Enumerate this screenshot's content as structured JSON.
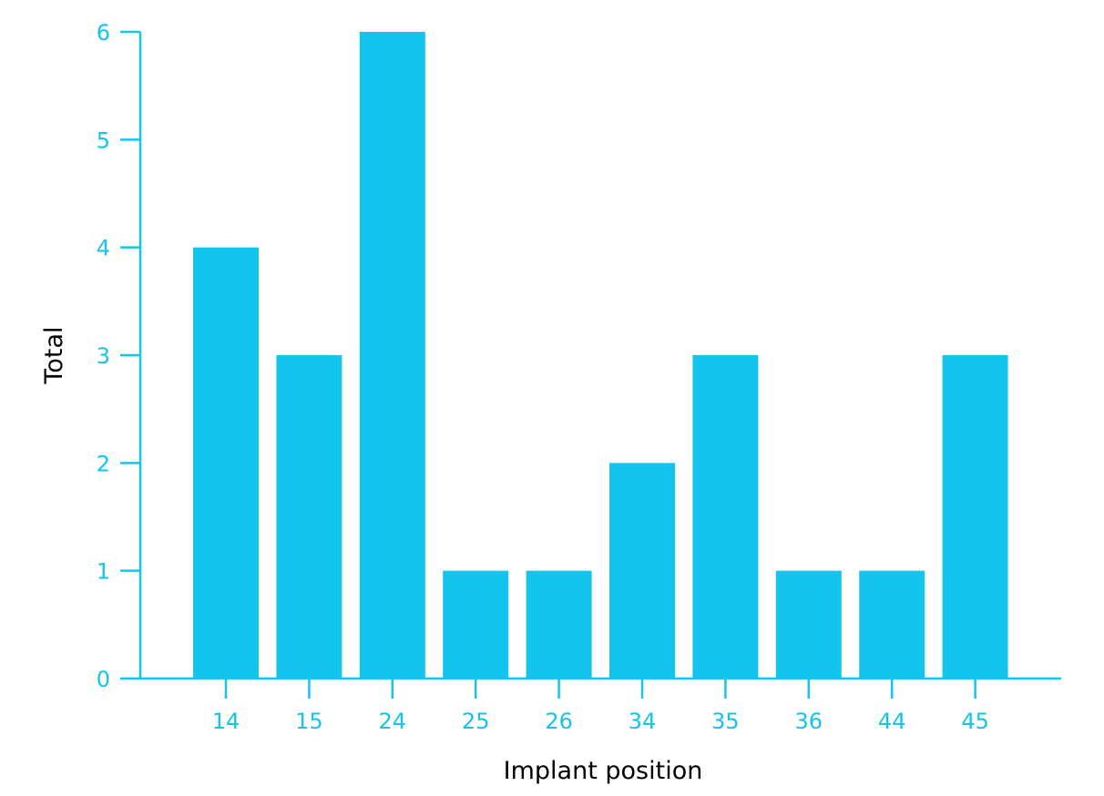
{
  "chart_data": {
    "type": "bar",
    "categories": [
      "14",
      "15",
      "24",
      "25",
      "26",
      "34",
      "35",
      "36",
      "44",
      "45"
    ],
    "values": [
      4,
      3,
      6,
      1,
      1,
      2,
      3,
      1,
      1,
      3
    ],
    "xlabel": "Implant position",
    "ylabel": "Total",
    "ylim": [
      0,
      6
    ],
    "yticks": [
      0,
      1,
      2,
      3,
      4,
      5,
      6
    ],
    "grid": false,
    "colors": {
      "bar": "#13c4ec",
      "axis": "#13c4ec",
      "tick_text": "#13c4ec",
      "title_text": "#000000"
    }
  }
}
